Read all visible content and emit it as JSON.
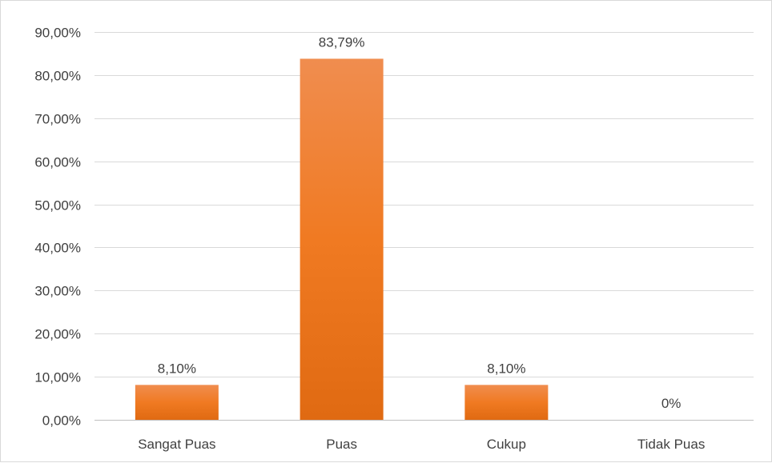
{
  "chart_data": {
    "type": "bar",
    "title": "",
    "xlabel": "",
    "ylabel": "",
    "categories": [
      "Sangat Puas",
      "Puas",
      "Cukup",
      "Tidak Puas"
    ],
    "values": [
      8.1,
      83.79,
      8.1,
      0
    ],
    "data_labels": [
      "8,10%",
      "83,79%",
      "8,10%",
      "0%"
    ],
    "ylim": [
      0,
      90
    ],
    "yticks": [
      0,
      10,
      20,
      30,
      40,
      50,
      60,
      70,
      80,
      90
    ],
    "ytick_labels": [
      "0,00%",
      "10,00%",
      "20,00%",
      "30,00%",
      "40,00%",
      "50,00%",
      "60,00%",
      "70,00%",
      "80,00%",
      "90,00%"
    ],
    "grid": true,
    "legend": "none",
    "colors": {
      "bar_top": "#f08d4f",
      "bar_mid": "#f07a22",
      "bar_bottom": "#e06a12",
      "grid": "#d9d9d9",
      "text": "#404040"
    }
  }
}
